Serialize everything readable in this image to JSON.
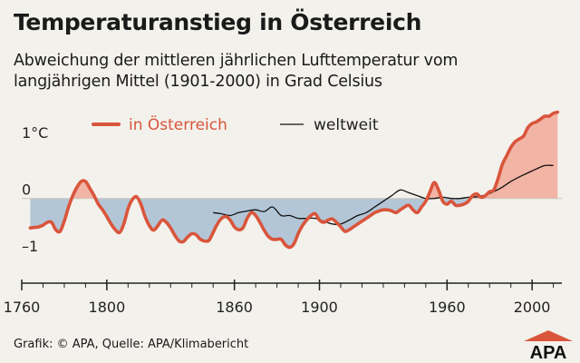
{
  "title": "Temperaturanstieg in Österreich",
  "subtitle": "Abweichung der mittleren jährlichen Lufttemperatur vom langjährigen Mittel (1901-2000) in Grad Celsius",
  "footer": "Grafik: © APA, Quelle: APA/Klimabericht",
  "logo_text": "APA",
  "colors": {
    "austria_line": "#d9553b",
    "above_fill": "#f2b4a4",
    "below_fill": "#b3c6d7",
    "world_line": "#111111",
    "axis": "#222222",
    "background": "#f3f1ec"
  },
  "chart_data": {
    "type": "line",
    "xlim": [
      1760,
      2014
    ],
    "ylim": [
      -1.3,
      1.45
    ],
    "x_ticks": [
      1760,
      1800,
      1860,
      1900,
      1960,
      2000
    ],
    "x_tick_labels": [
      "1760",
      "1800",
      "1860",
      "1900",
      "1960",
      "2000"
    ],
    "y_ticks": [
      1,
      0,
      -1
    ],
    "y_tick_labels": [
      "1°C",
      "0",
      "–1"
    ],
    "fill_between_zero": true,
    "legend_position": "top",
    "series": [
      {
        "name": "in Österreich",
        "x": [
          1764,
          1766,
          1768,
          1770,
          1772,
          1774,
          1776,
          1778,
          1780,
          1782,
          1784,
          1786,
          1788,
          1790,
          1792,
          1794,
          1796,
          1798,
          1800,
          1802,
          1804,
          1806,
          1808,
          1810,
          1812,
          1814,
          1816,
          1818,
          1820,
          1822,
          1824,
          1826,
          1828,
          1830,
          1832,
          1834,
          1836,
          1838,
          1840,
          1842,
          1844,
          1846,
          1848,
          1850,
          1852,
          1854,
          1856,
          1858,
          1860,
          1862,
          1864,
          1866,
          1868,
          1870,
          1872,
          1874,
          1876,
          1878,
          1880,
          1882,
          1884,
          1886,
          1888,
          1890,
          1892,
          1894,
          1896,
          1898,
          1900,
          1902,
          1904,
          1906,
          1908,
          1910,
          1912,
          1914,
          1916,
          1918,
          1920,
          1922,
          1924,
          1926,
          1928,
          1930,
          1932,
          1934,
          1936,
          1938,
          1940,
          1942,
          1944,
          1946,
          1948,
          1950,
          1952,
          1954,
          1956,
          1958,
          1960,
          1962,
          1964,
          1966,
          1968,
          1970,
          1972,
          1974,
          1976,
          1978,
          1980,
          1982,
          1984,
          1986,
          1988,
          1990,
          1992,
          1994,
          1996,
          1998,
          2000,
          2002,
          2004,
          2006,
          2008,
          2010,
          2012
        ],
        "y": [
          -0.52,
          -0.51,
          -0.5,
          -0.47,
          -0.42,
          -0.42,
          -0.55,
          -0.58,
          -0.4,
          -0.15,
          0.05,
          0.2,
          0.3,
          0.3,
          0.18,
          0.05,
          -0.1,
          -0.2,
          -0.32,
          -0.45,
          -0.55,
          -0.6,
          -0.45,
          -0.18,
          -0.02,
          0.03,
          -0.1,
          -0.32,
          -0.48,
          -0.56,
          -0.48,
          -0.38,
          -0.42,
          -0.52,
          -0.65,
          -0.75,
          -0.76,
          -0.68,
          -0.62,
          -0.64,
          -0.72,
          -0.75,
          -0.74,
          -0.6,
          -0.45,
          -0.35,
          -0.32,
          -0.38,
          -0.5,
          -0.55,
          -0.52,
          -0.35,
          -0.25,
          -0.3,
          -0.42,
          -0.56,
          -0.67,
          -0.72,
          -0.72,
          -0.72,
          -0.82,
          -0.86,
          -0.8,
          -0.62,
          -0.48,
          -0.38,
          -0.3,
          -0.27,
          -0.38,
          -0.42,
          -0.38,
          -0.36,
          -0.42,
          -0.5,
          -0.58,
          -0.55,
          -0.5,
          -0.45,
          -0.4,
          -0.35,
          -0.3,
          -0.25,
          -0.22,
          -0.2,
          -0.2,
          -0.22,
          -0.25,
          -0.2,
          -0.15,
          -0.12,
          -0.2,
          -0.25,
          -0.15,
          -0.05,
          0.12,
          0.28,
          0.15,
          -0.05,
          -0.1,
          -0.05,
          -0.12,
          -0.12,
          -0.1,
          -0.05,
          0.05,
          0.08,
          0.02,
          0.05,
          0.12,
          0.15,
          0.35,
          0.6,
          0.75,
          0.9,
          1.0,
          1.05,
          1.1,
          1.25,
          1.32,
          1.35,
          1.4,
          1.45,
          1.45,
          1.5,
          1.52
        ]
      },
      {
        "name": "weltweit",
        "x": [
          1850,
          1854,
          1858,
          1862,
          1866,
          1870,
          1874,
          1878,
          1882,
          1886,
          1890,
          1894,
          1898,
          1902,
          1906,
          1910,
          1914,
          1918,
          1922,
          1926,
          1930,
          1934,
          1938,
          1942,
          1946,
          1950,
          1954,
          1958,
          1962,
          1966,
          1970,
          1974,
          1978,
          1982,
          1986,
          1990,
          1994,
          1998,
          2002,
          2006,
          2010
        ],
        "y": [
          -0.25,
          -0.27,
          -0.3,
          -0.25,
          -0.22,
          -0.2,
          -0.23,
          -0.15,
          -0.3,
          -0.3,
          -0.35,
          -0.35,
          -0.35,
          -0.4,
          -0.45,
          -0.45,
          -0.38,
          -0.3,
          -0.25,
          -0.15,
          -0.05,
          0.05,
          0.15,
          0.1,
          0.05,
          0.0,
          0.0,
          0.02,
          0.0,
          0.0,
          0.02,
          0.03,
          0.06,
          0.12,
          0.2,
          0.3,
          0.38,
          0.45,
          0.52,
          0.58,
          0.58
        ]
      }
    ]
  }
}
